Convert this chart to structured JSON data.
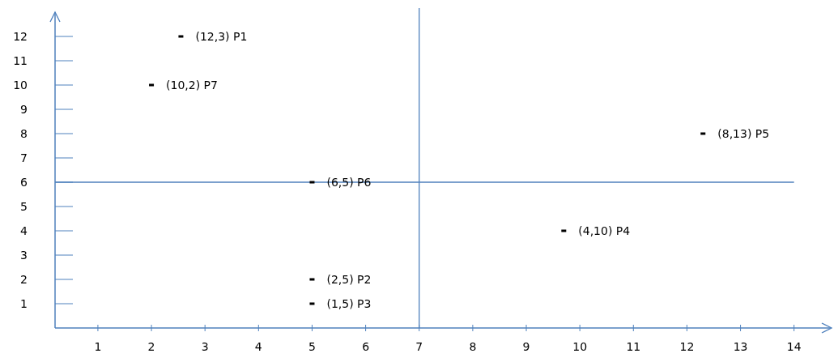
{
  "chart_data": {
    "type": "scatter",
    "x": [
      2.55,
      5,
      5,
      9.7,
      12.3,
      5,
      2
    ],
    "series": [
      {
        "color": "#000000",
        "values": [
          12,
          2,
          1,
          4,
          8,
          6,
          10
        ]
      }
    ],
    "marker": "square",
    "xlim": [
      0.2,
      14.7
    ],
    "ylim": [
      0,
      13
    ],
    "xticks": [
      1,
      2,
      3,
      4,
      5,
      6,
      7,
      8,
      9,
      10,
      11,
      12,
      13,
      14
    ],
    "yticks": [
      1,
      2,
      3,
      4,
      5,
      6,
      7,
      8,
      9,
      10,
      11,
      12
    ],
    "ref_lines": [
      {
        "axis": "y",
        "value": 6,
        "color": "#4f81bd"
      },
      {
        "axis": "x",
        "value": 7,
        "color": "#4f81bd"
      }
    ],
    "annotations": [
      {
        "text": "(12,3) P1",
        "x": 2.55,
        "y": 12
      },
      {
        "text": "(2,5) P2",
        "x": 5,
        "y": 2
      },
      {
        "text": "(1,5) P3",
        "x": 5,
        "y": 1
      },
      {
        "text": "(4,10) P4",
        "x": 9.7,
        "y": 4
      },
      {
        "text": "(8,13) P5",
        "x": 12.3,
        "y": 8
      },
      {
        "text": "(6,5) P6",
        "x": 5,
        "y": 6
      },
      {
        "text": "(10,2) P7",
        "x": 2,
        "y": 10
      }
    ]
  }
}
